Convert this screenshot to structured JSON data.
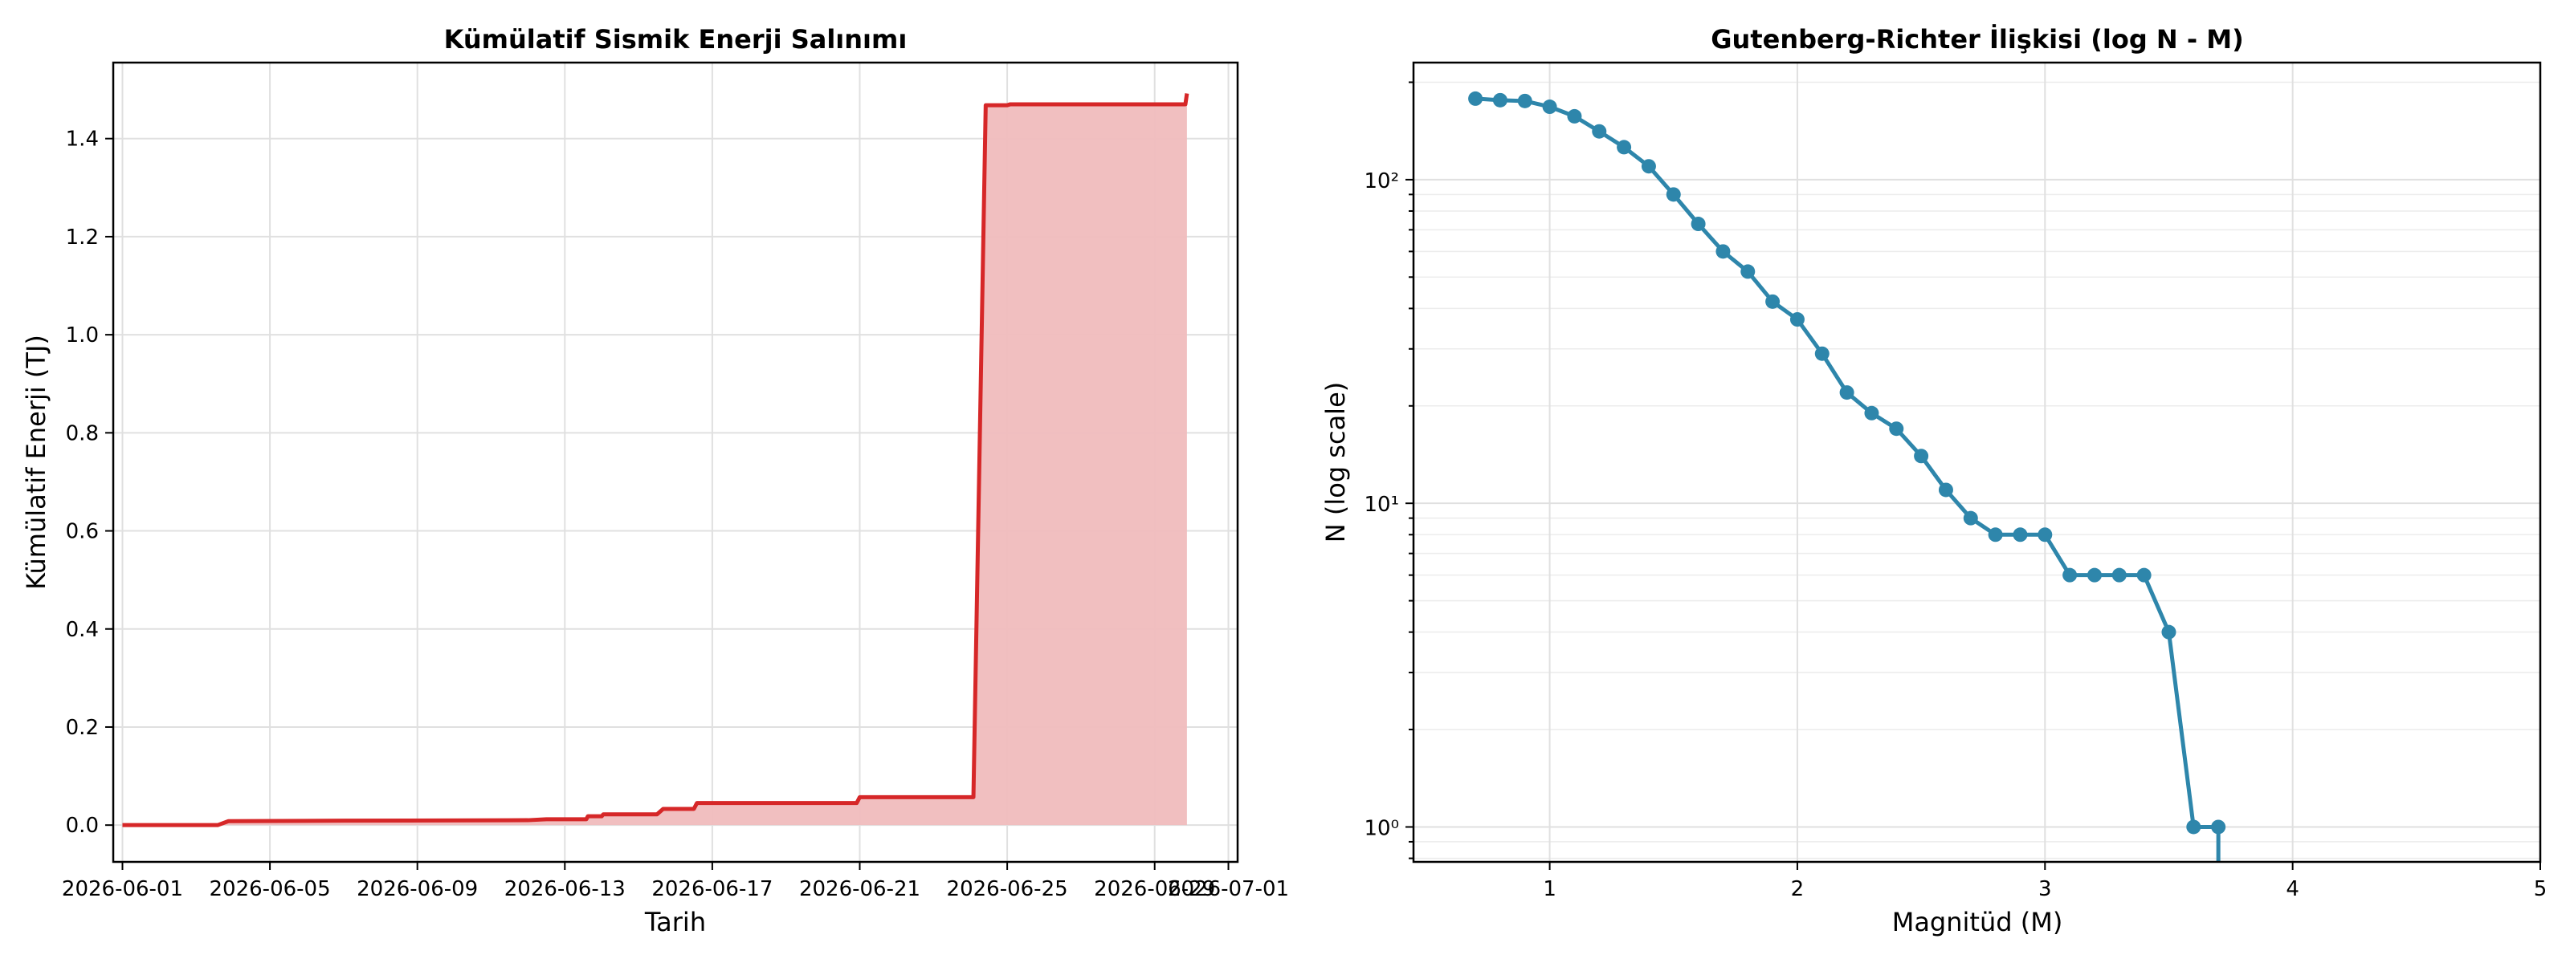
{
  "chart_data": [
    {
      "type": "area",
      "title": "Kümülatif Sismik Enerji Salınımı",
      "xlabel": "Tarih",
      "ylabel": "Kümülatif Enerji (TJ)",
      "color_line": "#d62728",
      "color_fill": "#f0bcbd",
      "grid": true,
      "xlim": [
        "2026-05-31T18:00",
        "2026-07-01T06:00"
      ],
      "ylim": [
        -0.075,
        1.555
      ],
      "x_ticks": [
        "2026-06-01",
        "2026-06-05",
        "2026-06-09",
        "2026-06-13",
        "2026-06-17",
        "2026-06-21",
        "2026-06-25",
        "2026-06-29",
        "2026-07-01"
      ],
      "y_ticks": [
        "0.0",
        "0.2",
        "0.4",
        "0.6",
        "0.8",
        "1.0",
        "1.2",
        "1.4"
      ],
      "series": [
        {
          "x": [
            "2026-06-01T00:00",
            "2026-06-03T14:00",
            "2026-06-03T21:00",
            "2026-06-07T00:00",
            "2026-06-12T00:00",
            "2026-06-12T12:00",
            "2026-06-13T14:00",
            "2026-06-13T15:00",
            "2026-06-14T00:00",
            "2026-06-14T01:00",
            "2026-06-15T12:00",
            "2026-06-15T16:00",
            "2026-06-16T12:00",
            "2026-06-16T14:00",
            "2026-06-20T22:00",
            "2026-06-21T00:00",
            "2026-06-24T02:00",
            "2026-06-24T10:00",
            "2026-06-25T00:00",
            "2026-06-25T02:00",
            "2026-06-29T20:00",
            "2026-06-29T21:00"
          ],
          "y": [
            0.0,
            0.0,
            0.008,
            0.009,
            0.01,
            0.012,
            0.012,
            0.018,
            0.018,
            0.022,
            0.022,
            0.033,
            0.033,
            0.045,
            0.045,
            0.057,
            0.057,
            1.468,
            1.468,
            1.47,
            1.47,
            1.492
          ]
        }
      ]
    },
    {
      "type": "line",
      "title": "Gutenberg-Richter İlişkisi (log N - M)",
      "xlabel": "Magnitüd (M)",
      "ylabel": "N (log scale)",
      "yscale": "log",
      "color_line": "#2e86ab",
      "grid": true,
      "xlim": [
        0.45,
        5.0
      ],
      "ylim": [
        0.78,
        230
      ],
      "x_ticks": [
        "1",
        "2",
        "3",
        "4",
        "5"
      ],
      "y_ticks": [
        "10⁰",
        "10¹",
        "10²"
      ],
      "series": [
        {
          "x": [
            0.7,
            0.8,
            0.9,
            1.0,
            1.1,
            1.2,
            1.3,
            1.4,
            1.5,
            1.6,
            1.7,
            1.8,
            1.9,
            2.0,
            2.1,
            2.2,
            2.3,
            2.4,
            2.5,
            2.6,
            2.7,
            2.8,
            2.9,
            3.0,
            3.1,
            3.2,
            3.3,
            3.4,
            3.5,
            3.6,
            3.7
          ],
          "y": [
            178,
            176,
            175,
            168,
            157,
            141,
            126,
            110,
            90,
            73,
            60,
            52,
            42,
            37,
            29,
            22,
            19,
            17,
            14,
            11,
            9,
            8,
            8,
            8,
            6,
            6,
            6,
            6,
            4,
            1,
            1
          ]
        }
      ]
    }
  ]
}
